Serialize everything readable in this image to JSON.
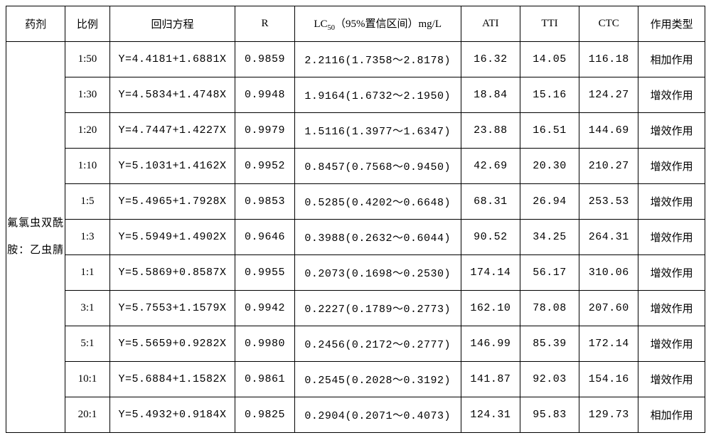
{
  "headers": {
    "drug": "药剂",
    "ratio": "比例",
    "equation": "回归方程",
    "r": "R",
    "lc50_prefix": "LC",
    "lc50_sub": "50",
    "lc50_suffix": "（95%置信区间）mg/L",
    "ati": "ATI",
    "tti": "TTI",
    "ctc": "CTC",
    "type": "作用类型"
  },
  "drug_name": "氟氯虫双酰胺：乙虫腈",
  "rows": [
    {
      "ratio": "1:50",
      "eq": "Y=4.4181+1.6881X",
      "r": "0.9859",
      "lc": "2.2116(1.7358～2.8178)",
      "ati": "16.32",
      "tti": "14.05",
      "ctc": "116.18",
      "type": "相加作用"
    },
    {
      "ratio": "1:30",
      "eq": "Y=4.5834+1.4748X",
      "r": "0.9948",
      "lc": "1.9164(1.6732～2.1950)",
      "ati": "18.84",
      "tti": "15.16",
      "ctc": "124.27",
      "type": "增效作用"
    },
    {
      "ratio": "1:20",
      "eq": "Y=4.7447+1.4227X",
      "r": "0.9979",
      "lc": "1.5116(1.3977～1.6347)",
      "ati": "23.88",
      "tti": "16.51",
      "ctc": "144.69",
      "type": "增效作用"
    },
    {
      "ratio": "1:10",
      "eq": "Y=5.1031+1.4162X",
      "r": "0.9952",
      "lc": "0.8457(0.7568～0.9450)",
      "ati": "42.69",
      "tti": "20.30",
      "ctc": "210.27",
      "type": "增效作用"
    },
    {
      "ratio": "1:5",
      "eq": "Y=5.4965+1.7928X",
      "r": "0.9853",
      "lc": "0.5285(0.4202～0.6648)",
      "ati": "68.31",
      "tti": "26.94",
      "ctc": "253.53",
      "type": "增效作用"
    },
    {
      "ratio": "1:3",
      "eq": "Y=5.5949+1.4902X",
      "r": "0.9646",
      "lc": "0.3988(0.2632～0.6044)",
      "ati": "90.52",
      "tti": "34.25",
      "ctc": "264.31",
      "type": "增效作用"
    },
    {
      "ratio": "1:1",
      "eq": "Y=5.5869+0.8587X",
      "r": "0.9955",
      "lc": "0.2073(0.1698～0.2530)",
      "ati": "174.14",
      "tti": "56.17",
      "ctc": "310.06",
      "type": "增效作用"
    },
    {
      "ratio": "3:1",
      "eq": "Y=5.7553+1.1579X",
      "r": "0.9942",
      "lc": "0.2227(0.1789～0.2773)",
      "ati": "162.10",
      "tti": "78.08",
      "ctc": "207.60",
      "type": "增效作用"
    },
    {
      "ratio": "5:1",
      "eq": "Y=5.5659+0.9282X",
      "r": "0.9980",
      "lc": "0.2456(0.2172～0.2777)",
      "ati": "146.99",
      "tti": "85.39",
      "ctc": "172.14",
      "type": "增效作用"
    },
    {
      "ratio": "10:1",
      "eq": "Y=5.6884+1.1582X",
      "r": "0.9861",
      "lc": "0.2545(0.2028～0.3192)",
      "ati": "141.87",
      "tti": "92.03",
      "ctc": "154.16",
      "type": "增效作用"
    },
    {
      "ratio": "20:1",
      "eq": "Y=5.4932+0.9184X",
      "r": "0.9825",
      "lc": "0.2904(0.2071～0.4073)",
      "ati": "124.31",
      "tti": "95.83",
      "ctc": "129.73",
      "type": "相加作用"
    }
  ]
}
